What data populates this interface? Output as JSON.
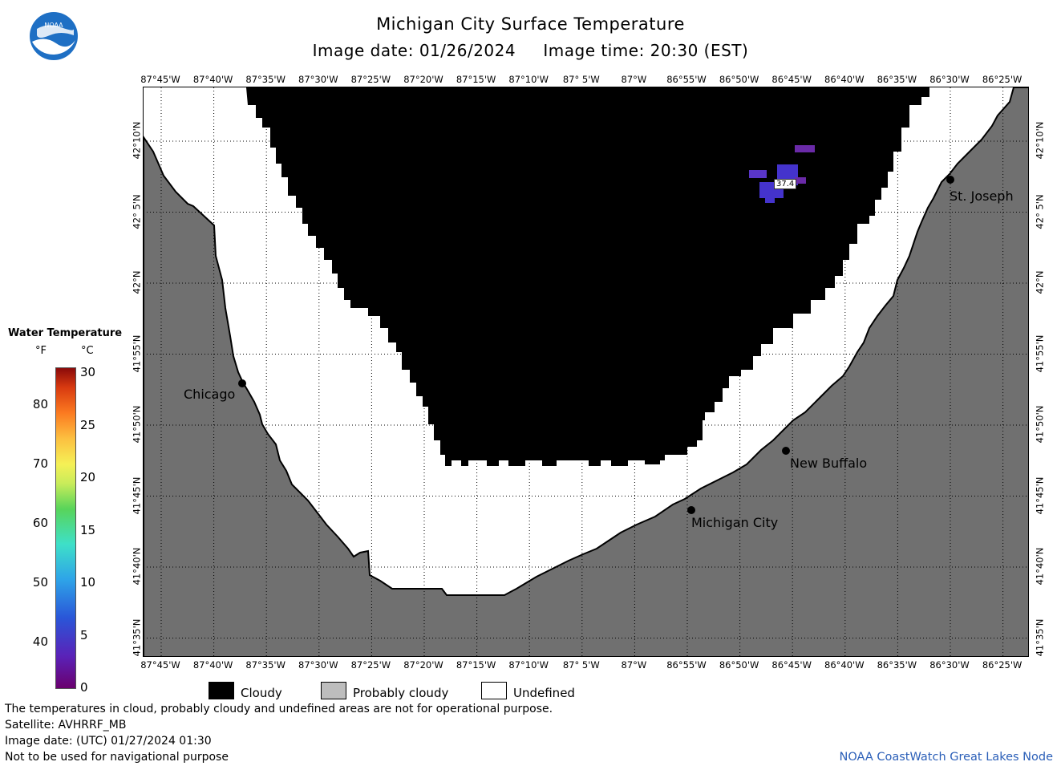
{
  "header": {
    "title": "Michigan City Surface Temperature",
    "subtitle_date": "Image date: 01/26/2024",
    "subtitle_time": "Image time: 20:30 (EST)"
  },
  "axes": {
    "longitudes": [
      "87°45'W",
      "87°40'W",
      "87°35'W",
      "87°30'W",
      "87°25'W",
      "87°20'W",
      "87°15'W",
      "87°10'W",
      "87° 5'W",
      "87°W",
      "86°55'W",
      "86°50'W",
      "86°45'W",
      "86°40'W",
      "86°35'W",
      "86°30'W",
      "86°25'W"
    ],
    "latitudes": [
      "42°10'N",
      "42° 5'N",
      "42°N",
      "41°55'N",
      "41°50'N",
      "41°45'N",
      "41°40'N",
      "41°35'N"
    ]
  },
  "places": {
    "chicago": "Chicago",
    "michigan_city": "Michigan City",
    "new_buffalo": "New Buffalo",
    "st_joseph": "St. Joseph"
  },
  "map_reading": {
    "value": "37.4"
  },
  "legend": {
    "title": "Water Temperature",
    "unit_f": "°F",
    "unit_c": "°C",
    "f_ticks": [
      "80",
      "70",
      "60",
      "50",
      "40"
    ],
    "c_ticks": [
      "30",
      "25",
      "20",
      "15",
      "10",
      "5",
      "0"
    ],
    "cloudy": "Cloudy",
    "probably_cloudy": "Probably cloudy",
    "undefined": "Undefined"
  },
  "colors": {
    "land": "#707070",
    "cloud": "#000000",
    "undefined": "#ffffff",
    "probably_cloudy": "#bdbdbd",
    "water_patch": "#4433cc",
    "credit": "#2b5fb8"
  },
  "footer": {
    "line1": "The temperatures in cloud, probably cloudy and undefined areas are not for operational purpose.",
    "line2": "Satellite: AVHRRF_MB",
    "line3": "Image date: (UTC) 01/27/2024  01:30",
    "line4": "Not to be used for navigational purpose",
    "credit": "NOAA CoastWatch Great Lakes Node"
  }
}
